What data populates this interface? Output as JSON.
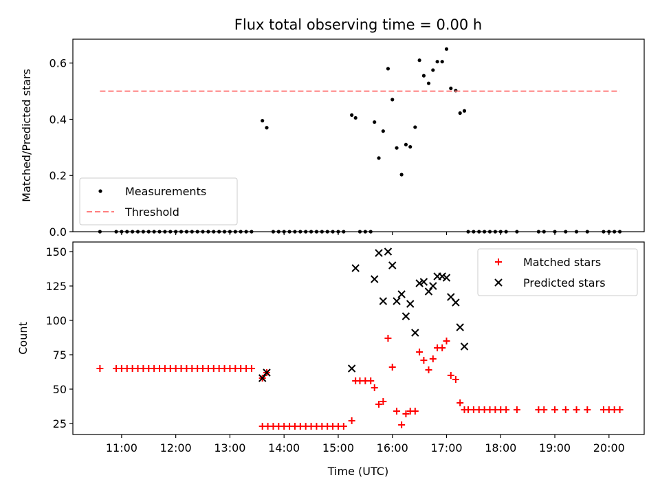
{
  "chart_data": {
    "type": "scatter",
    "title": "Flux total observing time = 0.00 h",
    "xlabel": "Time (UTC)",
    "x_unit": "hours UTC",
    "xlim": [
      10.1,
      20.65
    ],
    "x_ticks": [
      {
        "value": 11,
        "label": "11:00"
      },
      {
        "value": 12,
        "label": "12:00"
      },
      {
        "value": 13,
        "label": "13:00"
      },
      {
        "value": 14,
        "label": "14:00"
      },
      {
        "value": 15,
        "label": "15:00"
      },
      {
        "value": 16,
        "label": "16:00"
      },
      {
        "value": 17,
        "label": "17:00"
      },
      {
        "value": 18,
        "label": "18:00"
      },
      {
        "value": 19,
        "label": "19:00"
      },
      {
        "value": 20,
        "label": "20:00"
      }
    ],
    "panels": [
      {
        "ylabel": "Matched/Predicted stars",
        "ylim": [
          0,
          0.685
        ],
        "yticks": [
          0,
          0.2,
          0.4,
          0.6
        ],
        "ytick_labels": [
          "0.0",
          "0.2",
          "0.4",
          "0.6"
        ],
        "legend_position": "lower-left",
        "series": [
          {
            "name": "Measurements",
            "kind": "dot",
            "color": "#000000",
            "points": [
              [
                10.6,
                0
              ],
              [
                10.9,
                0
              ],
              [
                11.0,
                0
              ],
              [
                11.1,
                0
              ],
              [
                11.2,
                0
              ],
              [
                11.3,
                0
              ],
              [
                11.4,
                0
              ],
              [
                11.5,
                0
              ],
              [
                11.6,
                0
              ],
              [
                11.7,
                0
              ],
              [
                11.8,
                0
              ],
              [
                11.9,
                0
              ],
              [
                12.0,
                0
              ],
              [
                12.1,
                0
              ],
              [
                12.2,
                0
              ],
              [
                12.3,
                0
              ],
              [
                12.4,
                0
              ],
              [
                12.5,
                0
              ],
              [
                12.6,
                0
              ],
              [
                12.7,
                0
              ],
              [
                12.8,
                0
              ],
              [
                12.9,
                0
              ],
              [
                13.0,
                0
              ],
              [
                13.1,
                0
              ],
              [
                13.2,
                0
              ],
              [
                13.3,
                0
              ],
              [
                13.4,
                0
              ],
              [
                13.6,
                0.395
              ],
              [
                13.68,
                0.37
              ],
              [
                13.8,
                0
              ],
              [
                13.9,
                0
              ],
              [
                14.0,
                0
              ],
              [
                14.1,
                0
              ],
              [
                14.2,
                0
              ],
              [
                14.3,
                0
              ],
              [
                14.4,
                0
              ],
              [
                14.5,
                0
              ],
              [
                14.6,
                0
              ],
              [
                14.7,
                0
              ],
              [
                14.8,
                0
              ],
              [
                14.9,
                0
              ],
              [
                15.0,
                0
              ],
              [
                15.1,
                0
              ],
              [
                15.25,
                0.415
              ],
              [
                15.32,
                0.405
              ],
              [
                15.4,
                0
              ],
              [
                15.5,
                0
              ],
              [
                15.6,
                0
              ],
              [
                15.67,
                0.39
              ],
              [
                15.75,
                0.262
              ],
              [
                15.83,
                0.358
              ],
              [
                15.92,
                0.58
              ],
              [
                16.0,
                0.47
              ],
              [
                16.08,
                0.298
              ],
              [
                16.17,
                0.203
              ],
              [
                16.25,
                0.31
              ],
              [
                16.33,
                0.302
              ],
              [
                16.42,
                0.372
              ],
              [
                16.5,
                0.61
              ],
              [
                16.58,
                0.555
              ],
              [
                16.67,
                0.528
              ],
              [
                16.75,
                0.575
              ],
              [
                16.83,
                0.605
              ],
              [
                16.92,
                0.605
              ],
              [
                17.0,
                0.65
              ],
              [
                17.08,
                0.51
              ],
              [
                17.17,
                0.502
              ],
              [
                17.25,
                0.422
              ],
              [
                17.33,
                0.43
              ],
              [
                17.4,
                0
              ],
              [
                17.5,
                0
              ],
              [
                17.6,
                0
              ],
              [
                17.7,
                0
              ],
              [
                17.8,
                0
              ],
              [
                17.9,
                0
              ],
              [
                18.0,
                0
              ],
              [
                18.1,
                0
              ],
              [
                18.3,
                0
              ],
              [
                18.7,
                0
              ],
              [
                18.8,
                0
              ],
              [
                19.0,
                0
              ],
              [
                19.2,
                0
              ],
              [
                19.4,
                0
              ],
              [
                19.6,
                0
              ],
              [
                19.9,
                0
              ],
              [
                20.0,
                0
              ],
              [
                20.1,
                0
              ],
              [
                20.2,
                0
              ]
            ]
          },
          {
            "name": "Threshold",
            "kind": "dashed-line",
            "color": "#ff7f7f",
            "points": [
              [
                10.6,
                0.5
              ],
              [
                20.2,
                0.5
              ]
            ]
          }
        ]
      },
      {
        "ylabel": "Count",
        "ylim": [
          17,
          157
        ],
        "yticks": [
          25,
          50,
          75,
          100,
          125,
          150
        ],
        "ytick_labels": [
          "25",
          "50",
          "75",
          "100",
          "125",
          "150"
        ],
        "legend_position": "upper-right",
        "series": [
          {
            "name": "Matched stars",
            "kind": "plus",
            "color": "#ff0000",
            "points": [
              [
                10.6,
                65
              ],
              [
                10.9,
                65
              ],
              [
                11.0,
                65
              ],
              [
                11.1,
                65
              ],
              [
                11.2,
                65
              ],
              [
                11.3,
                65
              ],
              [
                11.4,
                65
              ],
              [
                11.5,
                65
              ],
              [
                11.6,
                65
              ],
              [
                11.7,
                65
              ],
              [
                11.8,
                65
              ],
              [
                11.9,
                65
              ],
              [
                12.0,
                65
              ],
              [
                12.1,
                65
              ],
              [
                12.2,
                65
              ],
              [
                12.3,
                65
              ],
              [
                12.4,
                65
              ],
              [
                12.5,
                65
              ],
              [
                12.6,
                65
              ],
              [
                12.7,
                65
              ],
              [
                12.8,
                65
              ],
              [
                12.9,
                65
              ],
              [
                13.0,
                65
              ],
              [
                13.1,
                65
              ],
              [
                13.2,
                65
              ],
              [
                13.3,
                65
              ],
              [
                13.4,
                65
              ],
              [
                13.6,
                58
              ],
              [
                13.68,
                62
              ],
              [
                13.6,
                23
              ],
              [
                13.7,
                23
              ],
              [
                13.8,
                23
              ],
              [
                13.9,
                23
              ],
              [
                14.0,
                23
              ],
              [
                14.1,
                23
              ],
              [
                14.2,
                23
              ],
              [
                14.3,
                23
              ],
              [
                14.4,
                23
              ],
              [
                14.5,
                23
              ],
              [
                14.6,
                23
              ],
              [
                14.7,
                23
              ],
              [
                14.8,
                23
              ],
              [
                14.9,
                23
              ],
              [
                15.0,
                23
              ],
              [
                15.1,
                23
              ],
              [
                15.25,
                27
              ],
              [
                15.32,
                56
              ],
              [
                15.4,
                56
              ],
              [
                15.5,
                56
              ],
              [
                15.6,
                56
              ],
              [
                15.67,
                51
              ],
              [
                15.75,
                39
              ],
              [
                15.83,
                41
              ],
              [
                15.92,
                87
              ],
              [
                16.0,
                66
              ],
              [
                16.08,
                34
              ],
              [
                16.17,
                24
              ],
              [
                16.25,
                32
              ],
              [
                16.33,
                34
              ],
              [
                16.42,
                34
              ],
              [
                16.5,
                77
              ],
              [
                16.58,
                71
              ],
              [
                16.67,
                64
              ],
              [
                16.75,
                72
              ],
              [
                16.83,
                80
              ],
              [
                16.92,
                80
              ],
              [
                17.0,
                85
              ],
              [
                17.08,
                60
              ],
              [
                17.17,
                57
              ],
              [
                17.25,
                40
              ],
              [
                17.33,
                35
              ],
              [
                17.4,
                35
              ],
              [
                17.5,
                35
              ],
              [
                17.6,
                35
              ],
              [
                17.7,
                35
              ],
              [
                17.8,
                35
              ],
              [
                17.9,
                35
              ],
              [
                18.0,
                35
              ],
              [
                18.1,
                35
              ],
              [
                18.3,
                35
              ],
              [
                18.7,
                35
              ],
              [
                18.8,
                35
              ],
              [
                19.0,
                35
              ],
              [
                19.2,
                35
              ],
              [
                19.4,
                35
              ],
              [
                19.6,
                35
              ],
              [
                19.9,
                35
              ],
              [
                20.0,
                35
              ],
              [
                20.1,
                35
              ],
              [
                20.2,
                35
              ]
            ]
          },
          {
            "name": "Predicted stars",
            "kind": "x",
            "color": "#000000",
            "points": [
              [
                13.6,
                58
              ],
              [
                13.68,
                62
              ],
              [
                15.25,
                65
              ],
              [
                15.32,
                138
              ],
              [
                15.67,
                130
              ],
              [
                15.75,
                149
              ],
              [
                15.83,
                114
              ],
              [
                15.92,
                150
              ],
              [
                16.0,
                140
              ],
              [
                16.08,
                114
              ],
              [
                16.17,
                119
              ],
              [
                16.25,
                103
              ],
              [
                16.33,
                112
              ],
              [
                16.42,
                91
              ],
              [
                16.5,
                127
              ],
              [
                16.58,
                128
              ],
              [
                16.67,
                121
              ],
              [
                16.75,
                125
              ],
              [
                16.83,
                132
              ],
              [
                16.92,
                132
              ],
              [
                17.0,
                131
              ],
              [
                17.08,
                117
              ],
              [
                17.17,
                113
              ],
              [
                17.25,
                95
              ],
              [
                17.33,
                81
              ]
            ]
          }
        ]
      }
    ]
  }
}
